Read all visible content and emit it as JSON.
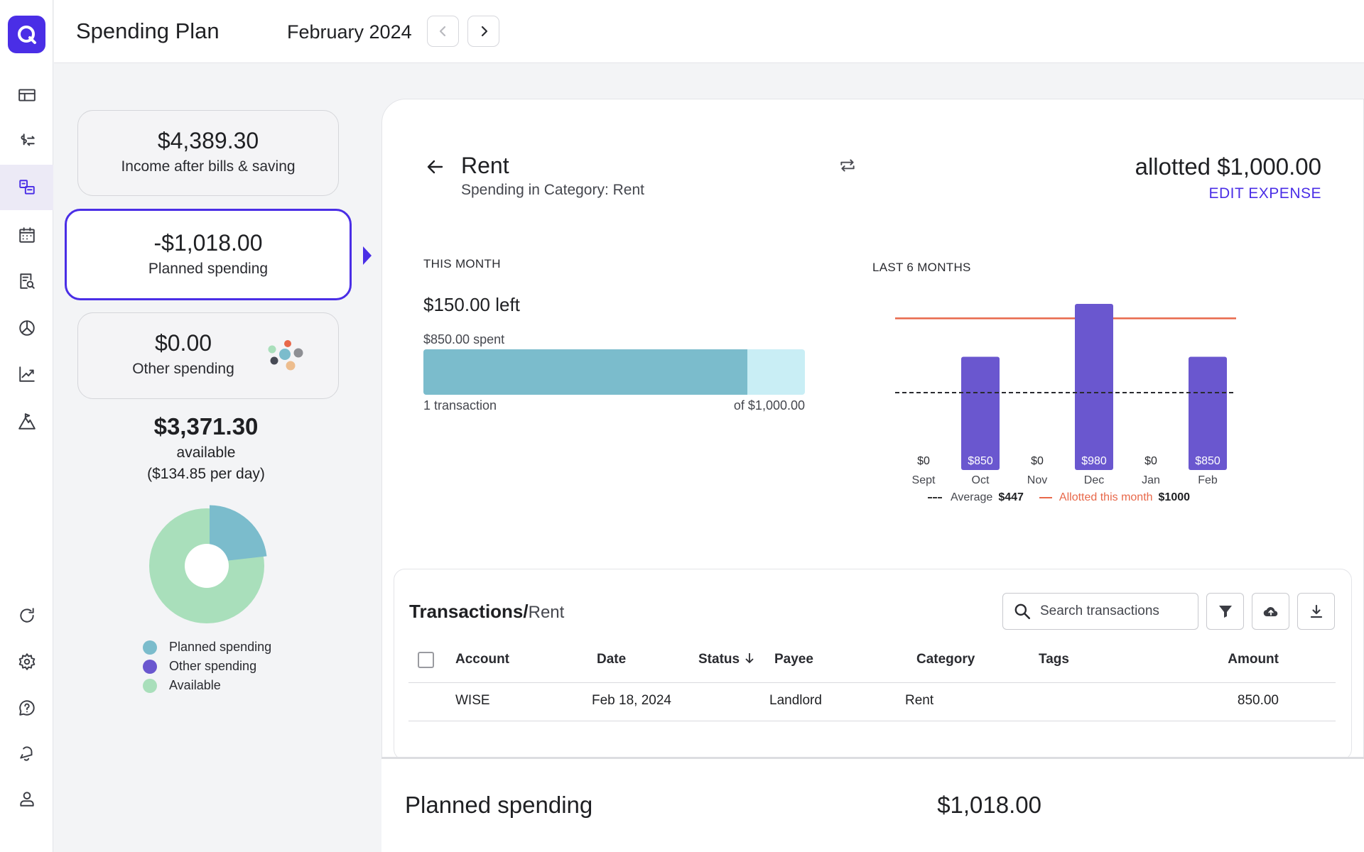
{
  "header": {
    "title": "Spending Plan",
    "month": "February 2024"
  },
  "sidebar": {
    "items": [
      {
        "name": "dashboard-icon"
      },
      {
        "name": "transactions-icon"
      },
      {
        "name": "spending-plan-icon",
        "active": true
      },
      {
        "name": "calendar-icon"
      },
      {
        "name": "reports-search-icon"
      },
      {
        "name": "investments-icon"
      },
      {
        "name": "trend-icon"
      },
      {
        "name": "planning-icon"
      },
      {
        "name": "refresh-icon"
      },
      {
        "name": "gear-icon"
      },
      {
        "name": "help-icon"
      },
      {
        "name": "notifications-icon"
      },
      {
        "name": "profile-icon"
      }
    ]
  },
  "summary": {
    "income": {
      "amount": "$4,389.30",
      "label": "Income after bills & saving"
    },
    "planned": {
      "amount": "-$1,018.00",
      "label": "Planned spending"
    },
    "other": {
      "amount": "$0.00",
      "label": "Other spending"
    },
    "available": {
      "amount": "$3,371.30",
      "label": "available",
      "per_day": "($134.85 per day)"
    },
    "donut": {
      "planned_fraction": 0.232,
      "colors": {
        "planned": "#7bbccc",
        "other": "#6a57cf",
        "available": "#a9dfbb"
      }
    },
    "legend": [
      "Planned spending",
      "Other spending",
      "Available"
    ]
  },
  "category": {
    "title": "Rent",
    "subtitle": "Spending in Category: Rent",
    "allotted": "allotted $1,000.00",
    "edit_label": "EDIT EXPENSE"
  },
  "this_month": {
    "caption": "THIS MONTH",
    "left": "$150.00 left",
    "spent": "$850.00 spent",
    "progress": 0.85,
    "transactions": "1 transaction",
    "of_total": "of $1,000.00"
  },
  "chart_data": {
    "type": "bar",
    "title": "LAST 6 MONTHS",
    "categories": [
      "Sept",
      "Oct",
      "Nov",
      "Dec",
      "Jan",
      "Feb"
    ],
    "values": [
      0,
      850,
      0,
      980,
      0,
      850
    ],
    "value_labels": [
      "$0",
      "$850",
      "$0",
      "$980",
      "$0",
      "$850"
    ],
    "average": 447,
    "allotted": 1000,
    "ylim": [
      0,
      1000
    ],
    "bar_color": "#6a57cf",
    "allotted_color": "#e8684a",
    "legend": {
      "average_label": "Average",
      "average_value": "$447",
      "allotted_label": "Allotted this month",
      "allotted_value": "$1000"
    }
  },
  "transactions": {
    "title": "Transactions/",
    "filter": "Rent",
    "search_placeholder": "Search transactions",
    "columns": [
      "Account",
      "Date",
      "Status",
      "Payee",
      "Category",
      "Tags",
      "Amount"
    ],
    "rows": [
      {
        "account": "WISE",
        "date": "Feb 18, 2024",
        "payee": "Landlord",
        "category": "Rent",
        "tags": "",
        "amount": "850.00"
      }
    ]
  },
  "footer": {
    "label": "Planned spending",
    "amount": "$1,018.00"
  }
}
